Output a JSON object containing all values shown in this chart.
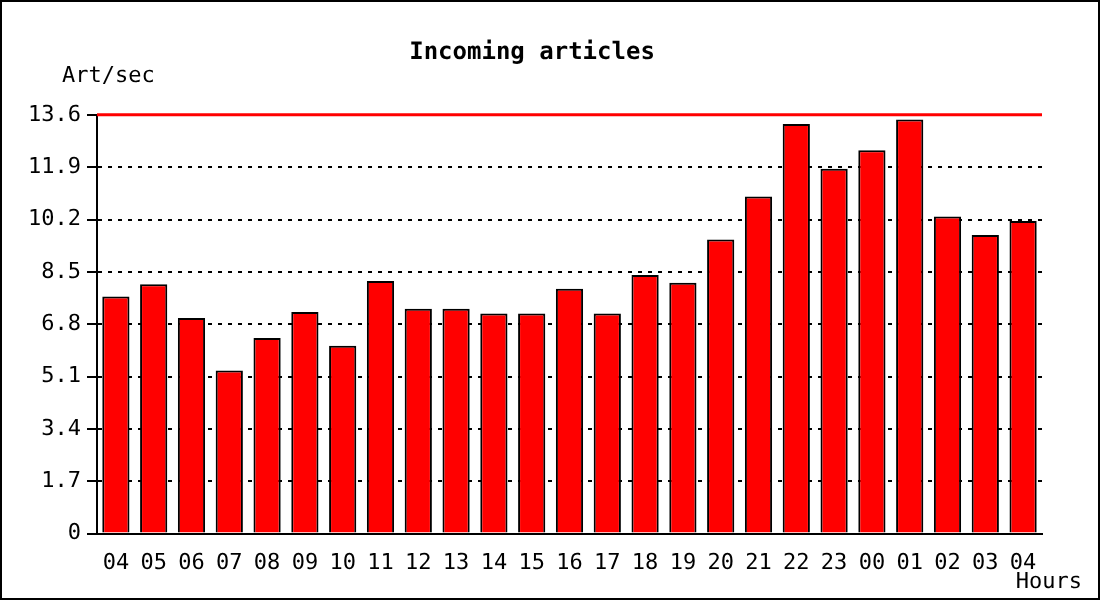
{
  "chart_data": {
    "type": "bar",
    "title": "Incoming articles",
    "xlabel": "Hours",
    "ylabel": "Art/sec",
    "categories": [
      "04",
      "05",
      "06",
      "07",
      "08",
      "09",
      "10",
      "11",
      "12",
      "13",
      "14",
      "15",
      "16",
      "17",
      "18",
      "19",
      "20",
      "21",
      "22",
      "23",
      "00",
      "01",
      "02",
      "03",
      "04"
    ],
    "values": [
      7.7,
      8.1,
      7.0,
      5.3,
      6.35,
      7.2,
      6.1,
      8.2,
      7.3,
      7.3,
      7.15,
      7.15,
      7.95,
      7.15,
      8.4,
      8.15,
      9.55,
      10.95,
      13.3,
      11.85,
      12.45,
      13.45,
      10.3,
      9.7,
      10.15
    ],
    "color": "#ff0000",
    "ylim": [
      0,
      13.6
    ],
    "yticks": [
      0,
      1.7,
      3.4,
      5.1,
      6.8,
      8.5,
      10.2,
      11.9,
      13.6
    ],
    "grid": "y",
    "legend": false,
    "ref_lines": [
      {
        "axis": "y",
        "value": 13.6,
        "color": "#ff0000"
      }
    ]
  }
}
